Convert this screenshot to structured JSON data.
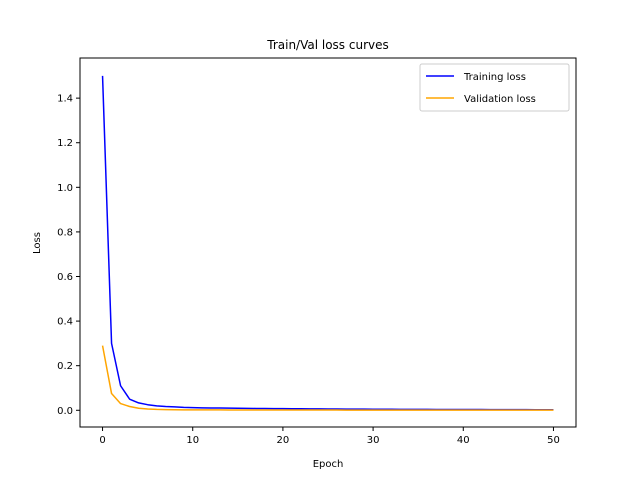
{
  "chart_data": {
    "type": "line",
    "title": "Train/Val loss curves",
    "xlabel": "Epoch",
    "ylabel": "Loss",
    "xlim": [
      -2.5,
      52.5
    ],
    "ylim": [
      -0.075,
      1.58
    ],
    "xticks": [
      0,
      10,
      20,
      30,
      40,
      50
    ],
    "yticks": [
      0.0,
      0.2,
      0.4,
      0.6,
      0.8,
      1.0,
      1.2,
      1.4
    ],
    "ytick_labels": [
      "0.0",
      "0.2",
      "0.4",
      "0.6",
      "0.8",
      "1.0",
      "1.2",
      "1.4"
    ],
    "grid": false,
    "legend_position": "top-right",
    "x": [
      0,
      1,
      2,
      3,
      4,
      5,
      6,
      7,
      8,
      9,
      10,
      11,
      12,
      13,
      14,
      15,
      16,
      17,
      18,
      19,
      20,
      21,
      22,
      23,
      24,
      25,
      26,
      27,
      28,
      29,
      30,
      31,
      32,
      33,
      34,
      35,
      36,
      37,
      38,
      39,
      40,
      41,
      42,
      43,
      44,
      45,
      46,
      47,
      48,
      49,
      50
    ],
    "series": [
      {
        "name": "Training loss",
        "color": "#0000ff",
        "values": [
          1.5,
          0.3,
          0.11,
          0.05,
          0.033,
          0.025,
          0.02,
          0.017,
          0.015,
          0.013,
          0.012,
          0.011,
          0.0105,
          0.01,
          0.0095,
          0.009,
          0.0086,
          0.0082,
          0.0078,
          0.0075,
          0.0072,
          0.0069,
          0.0066,
          0.0063,
          0.0061,
          0.0058,
          0.0056,
          0.0054,
          0.0052,
          0.005,
          0.0048,
          0.0046,
          0.0044,
          0.0043,
          0.0041,
          0.004,
          0.0038,
          0.0037,
          0.0036,
          0.0035,
          0.0034,
          0.0033,
          0.0032,
          0.0031,
          0.003,
          0.0029,
          0.0028,
          0.0027,
          0.0026,
          0.0025,
          0.0024
        ]
      },
      {
        "name": "Validation loss",
        "color": "#ffa500",
        "values": [
          0.29,
          0.075,
          0.03,
          0.017,
          0.009,
          0.006,
          0.004,
          0.003,
          0.0025,
          0.002,
          0.002,
          0.0018,
          0.0017,
          0.0016,
          0.0015,
          0.0014,
          0.0013,
          0.0012,
          0.0012,
          0.0011,
          0.0011,
          0.001,
          0.001,
          0.001,
          0.001,
          0.001,
          0.001,
          0.0009,
          0.0009,
          0.0009,
          0.0009,
          0.0008,
          0.0008,
          0.0008,
          0.0008,
          0.0007,
          0.0007,
          0.0007,
          0.0007,
          0.0006,
          0.0006,
          0.0006,
          0.0006,
          0.0006,
          0.0005,
          0.0005,
          0.0005,
          0.0005,
          0.0005,
          0.0005,
          0.0005
        ]
      }
    ]
  }
}
